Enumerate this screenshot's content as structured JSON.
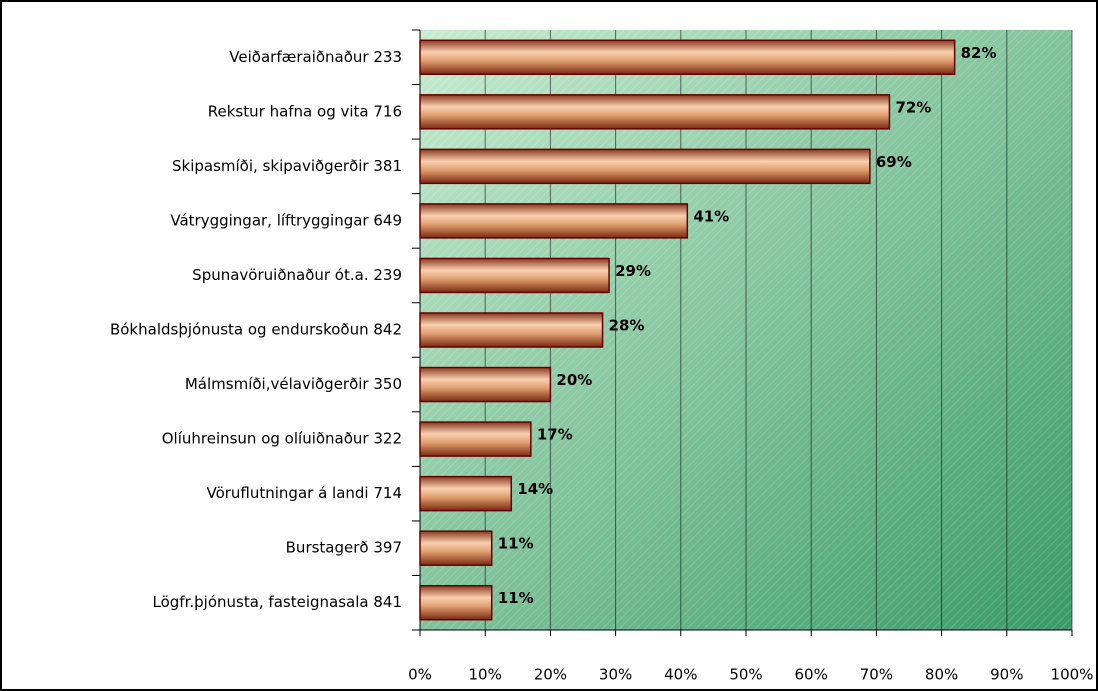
{
  "chart_data": {
    "type": "bar",
    "orientation": "horizontal",
    "categories": [
      "Veiðarfæraiðnaður 233",
      "Rekstur hafna og vita 716",
      "Skipasmíði, skipaviðgerðir 381",
      "Vátryggingar, líftryggingar 649",
      "Spunavöruiðnaður ót.a. 239",
      "Bókhaldsþjónusta og endurskoðun 842",
      "Málmsmíði,vélaviðgerðir 350",
      "Olíuhreinsun og olíuiðnaður 322",
      "Vöruflutningar á landi 714",
      "Burstagerð 397",
      "Lögfr.þjónusta, fasteignasala 841"
    ],
    "values": [
      82,
      72,
      69,
      41,
      29,
      28,
      20,
      17,
      14,
      11,
      11
    ],
    "value_labels": [
      "82%",
      "72%",
      "69%",
      "41%",
      "29%",
      "28%",
      "20%",
      "17%",
      "14%",
      "11%",
      "11%"
    ],
    "color": "#c87848",
    "xlim": [
      0,
      100
    ],
    "xticks": [
      {
        "value": 0,
        "label": "0%"
      },
      {
        "value": 10,
        "label": "10%"
      },
      {
        "value": 20,
        "label": "20%"
      },
      {
        "value": 30,
        "label": "30%"
      },
      {
        "value": 40,
        "label": "40%"
      },
      {
        "value": 50,
        "label": "50%"
      },
      {
        "value": 60,
        "label": "60%"
      },
      {
        "value": 70,
        "label": "70%"
      },
      {
        "value": 80,
        "label": "80%"
      },
      {
        "value": 90,
        "label": "90%"
      },
      {
        "value": 100,
        "label": "100%"
      }
    ],
    "grid": true
  }
}
